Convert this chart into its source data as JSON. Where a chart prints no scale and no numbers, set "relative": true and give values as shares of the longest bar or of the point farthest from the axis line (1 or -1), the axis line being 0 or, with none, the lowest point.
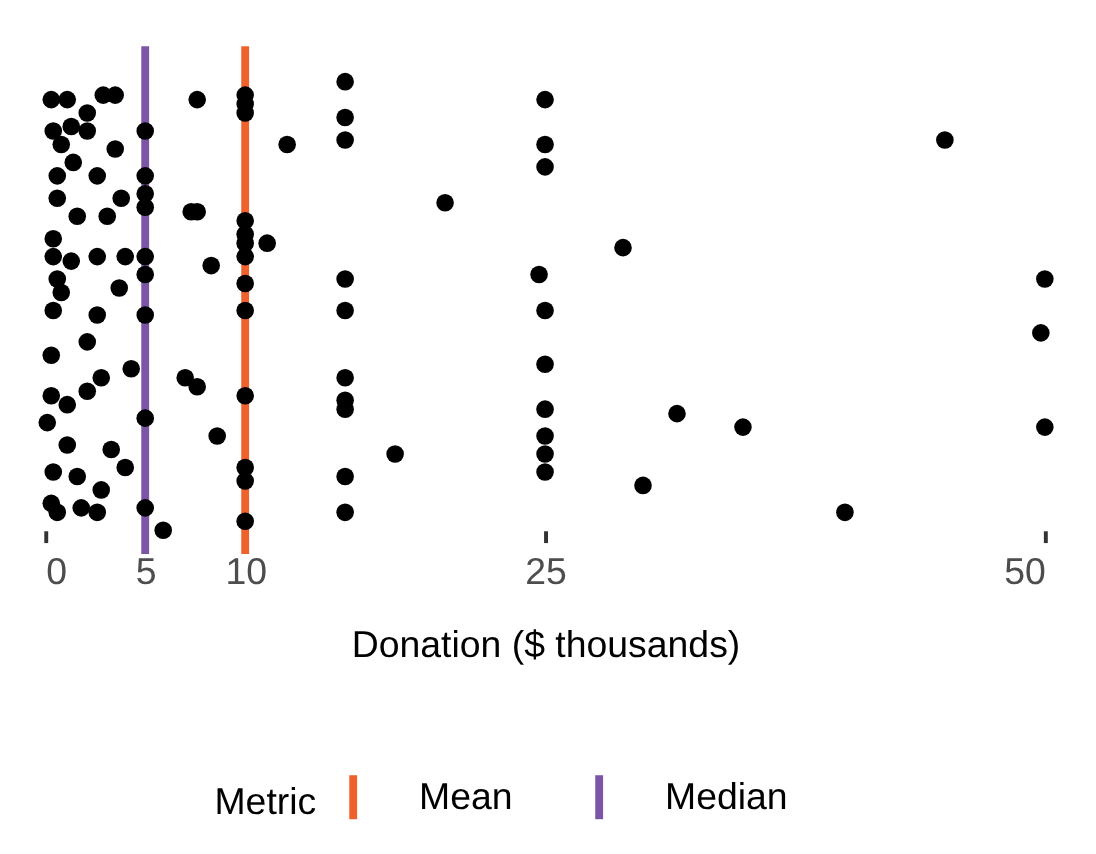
{
  "chart_data": {
    "type": "scatter",
    "xlabel": "Donation ($ thousands)",
    "legend_title": "Metric",
    "legend": "bottom",
    "relative": true,
    "tick_labels": "x",
    "grid": false,
    "marker": "circle",
    "xlim": [
      0,
      50
    ],
    "xticks": [
      0,
      5,
      10,
      25,
      50
    ],
    "ref_lines": [
      {
        "axis": "x",
        "value": 10,
        "label": "Mean",
        "color": "#f0622d"
      },
      {
        "axis": "x",
        "value": 5,
        "label": "Median",
        "color": "#7b56a6"
      }
    ],
    "series": [
      {
        "color": "#000000",
        "x": [
          15,
          15,
          15,
          12.1,
          25,
          25,
          25,
          45,
          20,
          11.1,
          28.9,
          15,
          15,
          15,
          15,
          15,
          15,
          15,
          24.7,
          25,
          25,
          25,
          25,
          25,
          25,
          50,
          49.8,
          50,
          31.6,
          34.9,
          17.5,
          29.9,
          40,
          10,
          10,
          10,
          10,
          10,
          10,
          10,
          10,
          10,
          10,
          10,
          10,
          10,
          8.3,
          7.6,
          7.3,
          7.6,
          7.0,
          7.6,
          8.6,
          5,
          5,
          5,
          5,
          5,
          5,
          5,
          5,
          5,
          4.3,
          5.9,
          0.3,
          1.1,
          2.9,
          3.5,
          2.1,
          0.4,
          1.3,
          2.1,
          0.8,
          3.5,
          1.4,
          0.6,
          2.6,
          0.6,
          1.6,
          3.1,
          3.8,
          0.4,
          0.4,
          1.3,
          2.6,
          4.0,
          0.6,
          3.7,
          0.8,
          0.4,
          2.6,
          2.1,
          0.3,
          2.8,
          2.1,
          0.3,
          1.1,
          0.1,
          1.1,
          3.3,
          4.0,
          0.4,
          1.6,
          2.8,
          0.3,
          1.8,
          2.6,
          0.6
        ],
        "values": [
          1.0,
          0.92,
          0.87,
          0.86,
          0.96,
          0.86,
          0.81,
          0.87,
          0.73,
          0.64,
          0.63,
          0.56,
          0.49,
          0.34,
          0.29,
          0.27,
          0.12,
          0.04,
          0.57,
          0.49,
          0.37,
          0.27,
          0.21,
          0.17,
          0.13,
          0.56,
          0.44,
          0.23,
          0.26,
          0.23,
          0.17,
          0.1,
          0.04,
          0.97,
          0.95,
          0.93,
          0.69,
          0.66,
          0.64,
          0.61,
          0.55,
          0.49,
          0.3,
          0.14,
          0.11,
          0.02,
          0.59,
          0.71,
          0.71,
          0.96,
          0.34,
          0.32,
          0.21,
          0.89,
          0.79,
          0.75,
          0.72,
          0.61,
          0.57,
          0.48,
          0.25,
          0.05,
          0.36,
          0.0,
          0.96,
          0.96,
          0.97,
          0.97,
          0.93,
          0.89,
          0.9,
          0.89,
          0.86,
          0.85,
          0.82,
          0.79,
          0.79,
          0.74,
          0.7,
          0.7,
          0.74,
          0.65,
          0.61,
          0.6,
          0.61,
          0.61,
          0.56,
          0.54,
          0.53,
          0.49,
          0.48,
          0.42,
          0.39,
          0.34,
          0.31,
          0.3,
          0.28,
          0.24,
          0.19,
          0.18,
          0.14,
          0.13,
          0.12,
          0.09,
          0.06,
          0.05,
          0.04,
          0.04
        ]
      }
    ]
  }
}
